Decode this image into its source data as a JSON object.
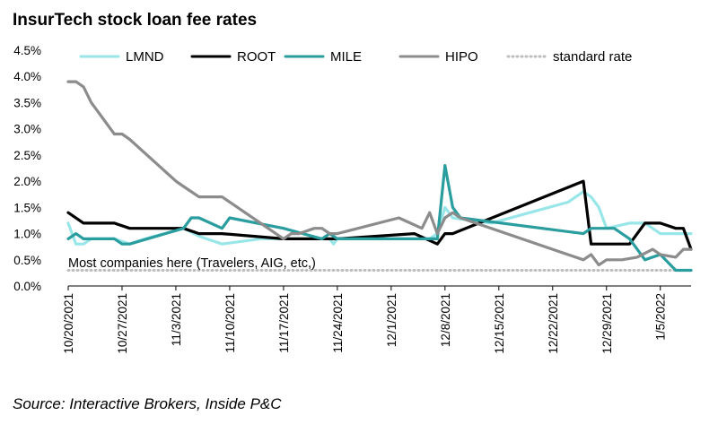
{
  "chart_data": {
    "type": "line",
    "title": "InsurTech stock loan fee rates",
    "source": "Source: Interactive Brokers, Inside P&C",
    "annotation": "Most companies here (Travelers, AIG, etc,)",
    "xlabel": "",
    "ylabel": "",
    "ylim": [
      0,
      4.5
    ],
    "x_range_days": [
      0,
      81
    ],
    "legend_position": "top",
    "ytick_values": [
      0,
      0.5,
      1.0,
      1.5,
      2.0,
      2.5,
      3.0,
      3.5,
      4.0,
      4.5
    ],
    "ytick_labels": [
      "0.0%",
      "0.5%",
      "1.0%",
      "1.5%",
      "2.0%",
      "2.5%",
      "3.0%",
      "3.5%",
      "4.0%",
      "4.5%"
    ],
    "xtick_days": [
      0,
      7,
      14,
      21,
      28,
      35,
      42,
      49,
      56,
      63,
      70,
      77
    ],
    "xtick_labels": [
      "10/20/2021",
      "10/27/2021",
      "11/3/2021",
      "11/10/2021",
      "11/17/2021",
      "11/24/2021",
      "12/1/2021",
      "12/8/2021",
      "12/15/2021",
      "12/22/2021",
      "12/29/2021",
      "1/5/2022"
    ],
    "series": [
      {
        "name": "LMND",
        "color": "#99E6E9",
        "style": "solid",
        "x": [
          0,
          1,
          2,
          3,
          5,
          6,
          8,
          10,
          15,
          17,
          20,
          25,
          28,
          31,
          34,
          34.5,
          35,
          40,
          47,
          48,
          49,
          50,
          55,
          60,
          65,
          67,
          68,
          68.5,
          69,
          70,
          73,
          75,
          76,
          77,
          81
        ],
        "y": [
          1.2,
          0.8,
          0.8,
          0.9,
          0.9,
          0.9,
          0.8,
          0.9,
          1.1,
          0.95,
          0.8,
          0.9,
          0.9,
          0.9,
          0.9,
          0.8,
          0.9,
          0.9,
          0.9,
          1.0,
          1.5,
          1.3,
          1.2,
          1.4,
          1.6,
          1.8,
          1.7,
          1.6,
          1.5,
          1.1,
          1.2,
          1.2,
          1.1,
          1.0,
          1.0
        ]
      },
      {
        "name": "ROOT",
        "color": "#000000",
        "style": "solid",
        "x": [
          0,
          2,
          4,
          6,
          8,
          15,
          17,
          20,
          28,
          33,
          35,
          45,
          48,
          49,
          50,
          67,
          68,
          70,
          73,
          75,
          77,
          79,
          80,
          81
        ],
        "y": [
          1.4,
          1.2,
          1.2,
          1.2,
          1.1,
          1.1,
          1.0,
          1.0,
          0.9,
          0.9,
          0.9,
          1.0,
          0.8,
          1.0,
          1.0,
          2.0,
          0.8,
          0.8,
          0.8,
          1.2,
          1.2,
          1.1,
          1.1,
          0.7
        ]
      },
      {
        "name": "MILE",
        "color": "#2A9D9F",
        "style": "solid",
        "x": [
          0,
          1,
          2,
          3,
          6,
          7,
          8,
          15,
          16,
          17,
          20,
          21,
          28,
          33,
          34,
          35,
          48,
          49,
          50,
          51,
          67,
          68,
          70,
          71,
          73,
          75,
          77,
          79,
          80,
          81
        ],
        "y": [
          0.9,
          1.0,
          0.9,
          0.9,
          0.9,
          0.8,
          0.8,
          1.1,
          1.3,
          1.3,
          1.1,
          1.3,
          1.1,
          0.9,
          1.0,
          0.9,
          0.9,
          2.3,
          1.5,
          1.3,
          1.0,
          1.1,
          1.1,
          1.1,
          0.9,
          0.5,
          0.6,
          0.3,
          0.3,
          0.3
        ]
      },
      {
        "name": "HIPO",
        "color": "#8C8C8C",
        "style": "solid",
        "x": [
          0,
          1,
          2,
          3,
          6,
          7,
          8,
          14,
          15,
          17,
          20,
          28,
          29,
          30,
          32,
          33,
          34,
          35,
          43,
          46,
          47,
          48,
          49,
          50,
          51,
          67,
          68,
          69,
          70,
          71,
          72,
          74,
          76,
          77,
          79,
          80,
          81
        ],
        "y": [
          3.9,
          3.9,
          3.8,
          3.5,
          2.9,
          2.9,
          2.8,
          2.0,
          1.9,
          1.7,
          1.7,
          0.9,
          1.0,
          1.0,
          1.1,
          1.1,
          1.0,
          1.0,
          1.3,
          1.1,
          1.4,
          1.0,
          1.3,
          1.4,
          1.3,
          0.5,
          0.6,
          0.4,
          0.5,
          0.5,
          0.5,
          0.55,
          0.7,
          0.6,
          0.55,
          0.7,
          0.7
        ]
      },
      {
        "name": "standard rate",
        "color": "#BDBDBD",
        "style": "dotted",
        "x": [
          0,
          81
        ],
        "y": [
          0.3,
          0.3
        ]
      }
    ]
  }
}
